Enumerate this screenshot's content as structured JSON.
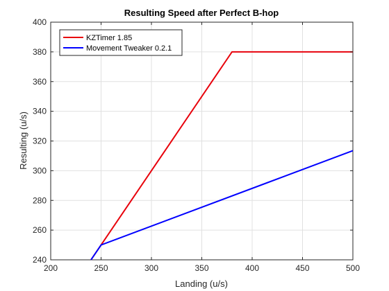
{
  "chart_data": {
    "type": "line",
    "title": "Resulting Speed after Perfect B-hop",
    "xlabel": "Landing (u/s)",
    "ylabel": "Resulting (u/s)",
    "xlim": [
      200,
      500
    ],
    "ylim": [
      240,
      400
    ],
    "xticks": [
      200,
      250,
      300,
      350,
      400,
      450,
      500
    ],
    "yticks": [
      240,
      260,
      280,
      300,
      320,
      340,
      360,
      380,
      400
    ],
    "grid": true,
    "legend_position": "top-left",
    "series": [
      {
        "name": "KZTimer 1.85",
        "color": "#e8000b",
        "points": [
          [
            240,
            240
          ],
          [
            250,
            250
          ],
          [
            380,
            380
          ],
          [
            500,
            380
          ]
        ]
      },
      {
        "name": "Movement Tweaker 0.2.1",
        "color": "#0000ff",
        "points": [
          [
            240,
            240
          ],
          [
            250,
            250
          ],
          [
            500,
            313.5
          ]
        ]
      }
    ]
  }
}
